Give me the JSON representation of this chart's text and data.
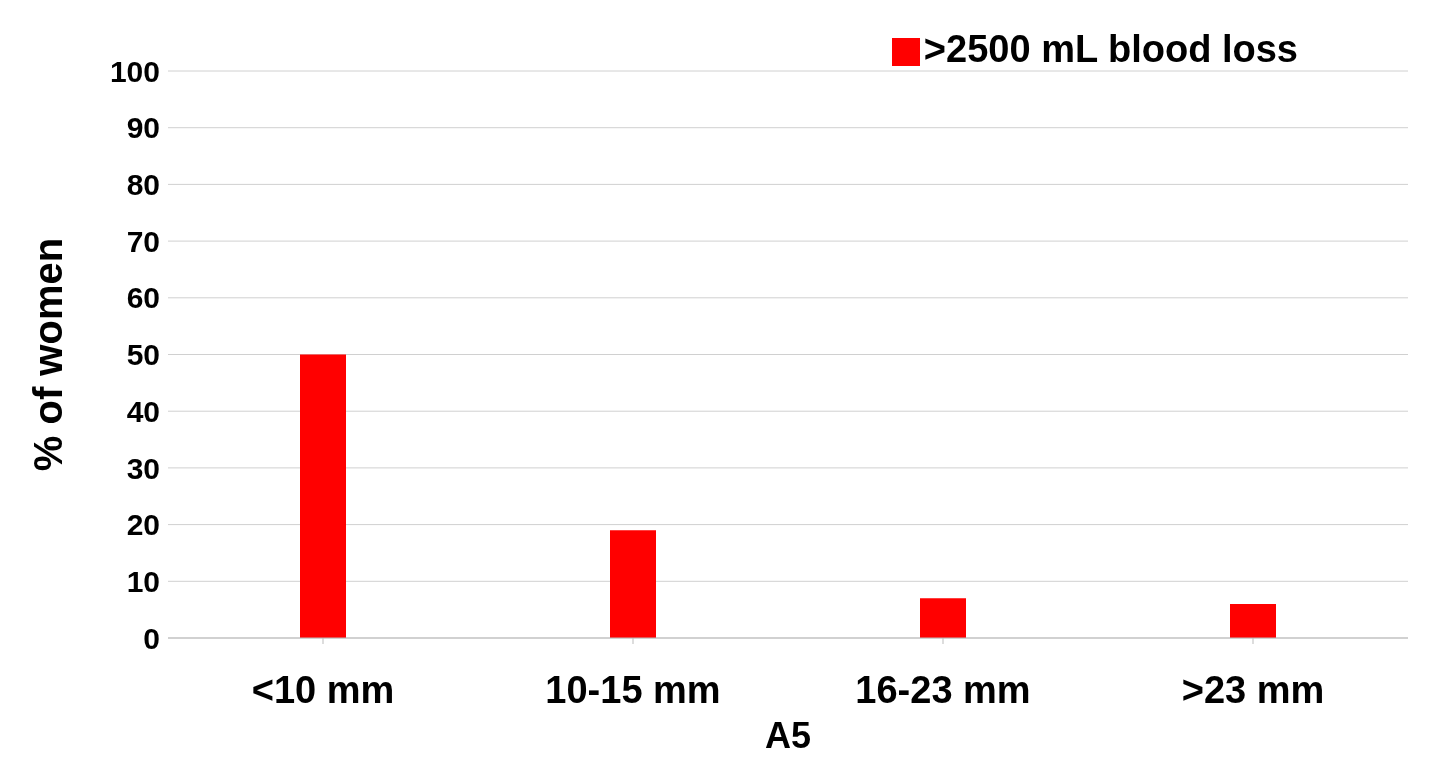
{
  "chart_data": {
    "type": "bar",
    "xlabel": "A5",
    "ylabel": "% of women",
    "categories": [
      "<10 mm",
      "10-15 mm",
      "16-23 mm",
      ">23 mm"
    ],
    "series": [
      {
        "name": ">2500 mL blood loss",
        "color": "#ff0000",
        "values": [
          50,
          19,
          7,
          6
        ]
      }
    ],
    "ylim": [
      0,
      100
    ],
    "yticks": [
      0,
      10,
      20,
      30,
      40,
      50,
      60,
      70,
      80,
      90,
      100
    ],
    "grid": "y",
    "legend": "top right"
  }
}
